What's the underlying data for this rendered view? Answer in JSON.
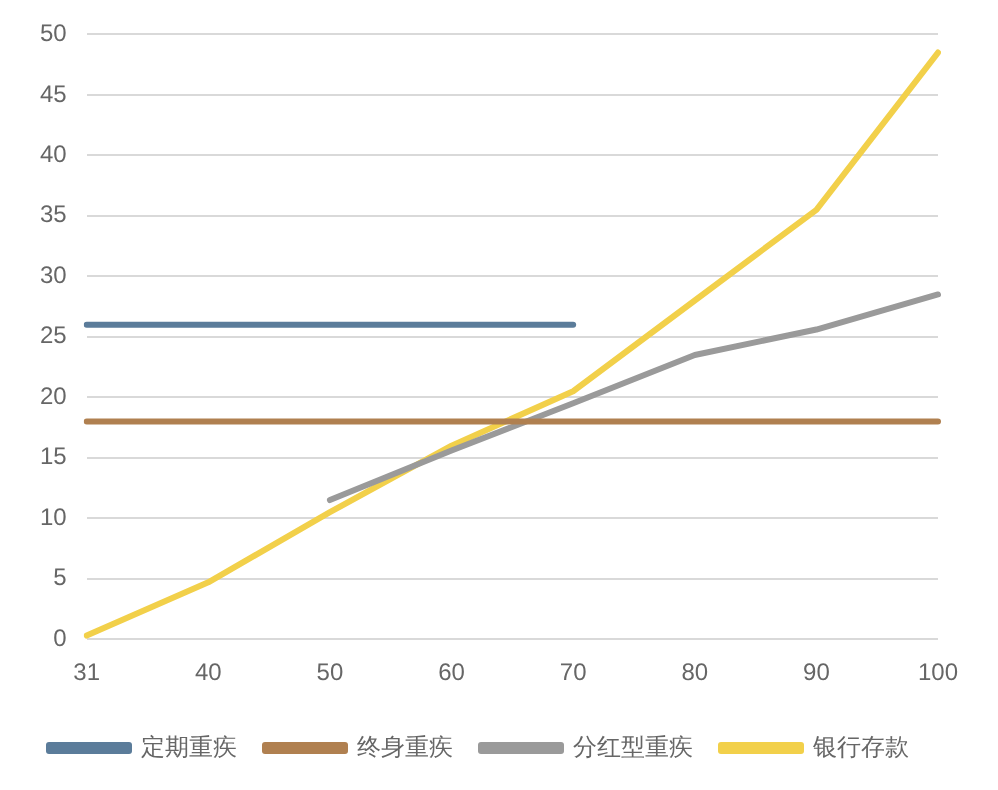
{
  "chart_data": {
    "type": "line",
    "categories": [
      "31",
      "40",
      "50",
      "60",
      "70",
      "80",
      "90",
      "100"
    ],
    "series": [
      {
        "name": "定期重疾",
        "color": "#5b7c9a",
        "values": [
          26,
          26,
          26,
          26,
          26,
          null,
          null,
          null
        ]
      },
      {
        "name": "终身重疾",
        "color": "#b08050",
        "values": [
          18,
          18,
          18,
          18,
          18,
          18,
          18,
          18
        ]
      },
      {
        "name": "分红型重疾",
        "color": "#9a9a9a",
        "values": [
          null,
          null,
          11.5,
          15.6,
          19.5,
          23.5,
          25.6,
          28.5
        ]
      },
      {
        "name": "银行存款",
        "color": "#f2d04a",
        "values": [
          0.3,
          4.7,
          10.5,
          16,
          20.5,
          28,
          35.5,
          48.5
        ]
      }
    ],
    "ylim": [
      0,
      50
    ],
    "yticks": [
      0,
      5,
      10,
      15,
      20,
      25,
      30,
      35,
      40,
      45,
      50
    ],
    "grid": "y",
    "legend": "bottom",
    "marker": "none",
    "line_style": "solid"
  }
}
